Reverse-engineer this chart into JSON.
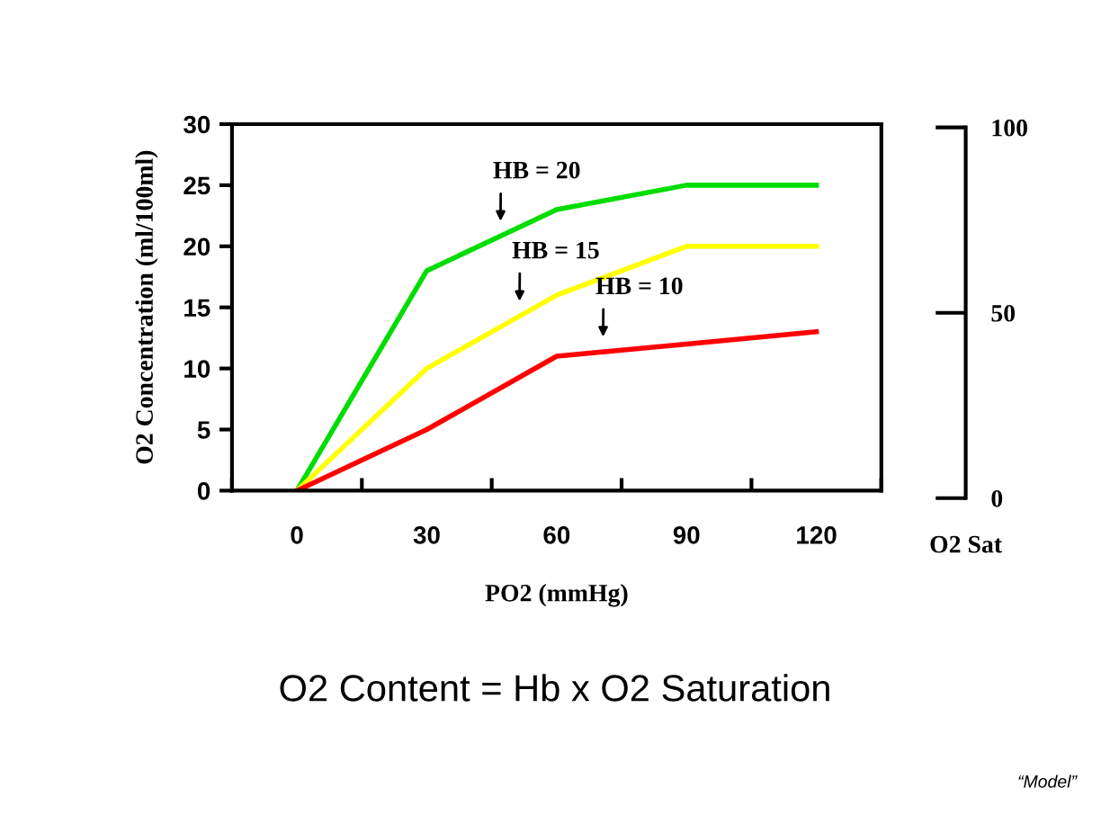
{
  "chart_data": {
    "type": "line",
    "x": [
      0,
      30,
      60,
      90,
      120
    ],
    "series": [
      {
        "color": "#00dd00",
        "values": [
          0,
          18,
          23,
          25,
          25
        ]
      },
      {
        "color": "#ffff00",
        "values": [
          0,
          10,
          16,
          20,
          20
        ]
      },
      {
        "color": "#ff0000",
        "values": [
          0,
          5,
          11,
          12,
          13
        ]
      }
    ],
    "xlim": [
      -15,
      135
    ],
    "xticks": [
      {
        "value": -15,
        "label": null
      },
      0,
      {
        "value": 15,
        "label": null
      },
      30,
      {
        "value": 45,
        "label": null
      },
      60,
      {
        "value": 75,
        "label": null
      },
      90,
      {
        "value": 105,
        "label": null
      },
      120,
      {
        "value": 135,
        "label": null
      }
    ],
    "ylim": [
      0,
      30
    ],
    "yticks": [
      0,
      5,
      10,
      15,
      20,
      25,
      30
    ],
    "y2lim": [
      0,
      100
    ],
    "y2ticks": [
      0,
      50,
      100
    ],
    "xlabel": "PO2 (mmHg)",
    "ylabel": "O2 Concentration (ml/100ml)",
    "y2label": "O2 Sat",
    "annotations": [
      {
        "text": "HB = 20",
        "x": 47,
        "y": 20.83
      },
      {
        "text": "HB = 15",
        "x": 51.4,
        "y": 14.28
      },
      {
        "text": "HB = 10",
        "x": 70.7,
        "y": 11.36
      },
      "O2 Content = Hb x O2 Saturation",
      "“Model”"
    ],
    "grid": false,
    "legend": false,
    "marker": "none",
    "line_style": "solid"
  }
}
